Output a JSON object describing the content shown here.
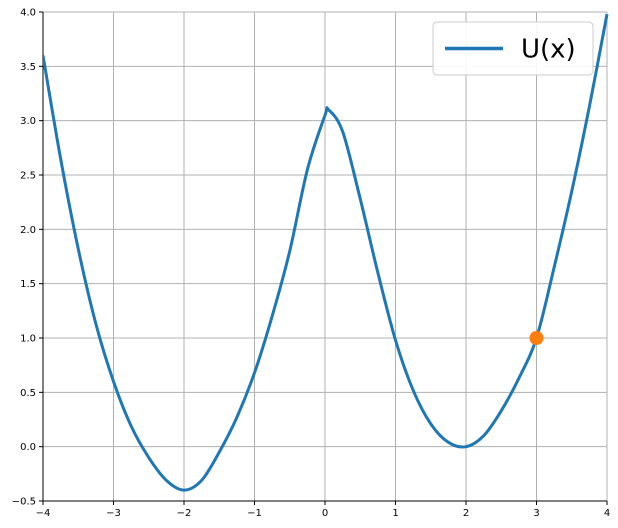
{
  "chart_data": {
    "type": "line",
    "title": "",
    "xlabel": "",
    "ylabel": "",
    "xlim": [
      -4,
      4
    ],
    "ylim": [
      -0.5,
      4.0
    ],
    "x_ticks": [
      -4,
      -3,
      -2,
      -1,
      0,
      1,
      2,
      3,
      4
    ],
    "x_tick_labels": [
      "−4",
      "−3",
      "−2",
      "−1",
      "0",
      "1",
      "2",
      "3",
      "4"
    ],
    "y_ticks": [
      -0.5,
      0.0,
      0.5,
      1.0,
      1.5,
      2.0,
      2.5,
      3.0,
      3.5,
      4.0
    ],
    "y_tick_labels": [
      "−0.5",
      "0.0",
      "0.5",
      "1.0",
      "1.5",
      "2.0",
      "2.5",
      "3.0",
      "3.5",
      "4.0"
    ],
    "grid": true,
    "legend_position": "top-right",
    "series": [
      {
        "name": "U(x)",
        "color": "#1f77b4",
        "x": [
          -4.0,
          -3.75,
          -3.5,
          -3.25,
          -3.0,
          -2.75,
          -2.5,
          -2.25,
          -2.0,
          -1.75,
          -1.5,
          -1.25,
          -1.0,
          -0.75,
          -0.5,
          -0.25,
          0.0,
          0.05,
          0.25,
          0.5,
          0.75,
          1.0,
          1.25,
          1.5,
          1.75,
          2.0,
          2.25,
          2.5,
          2.75,
          3.0,
          3.25,
          3.5,
          3.75,
          4.0
        ],
        "y": [
          3.6,
          2.65,
          1.82,
          1.13,
          0.6,
          0.19,
          -0.1,
          -0.31,
          -0.4,
          -0.31,
          -0.05,
          0.27,
          0.68,
          1.2,
          1.8,
          2.55,
          3.05,
          3.1,
          2.9,
          2.28,
          1.6,
          0.98,
          0.52,
          0.21,
          0.04,
          0.0,
          0.1,
          0.33,
          0.63,
          1.0,
          1.65,
          2.35,
          3.13,
          3.98
        ]
      },
      {
        "name": "",
        "type": "scatter",
        "color": "#ff7f0e",
        "x": [
          3.0
        ],
        "y": [
          1.0
        ]
      }
    ]
  }
}
